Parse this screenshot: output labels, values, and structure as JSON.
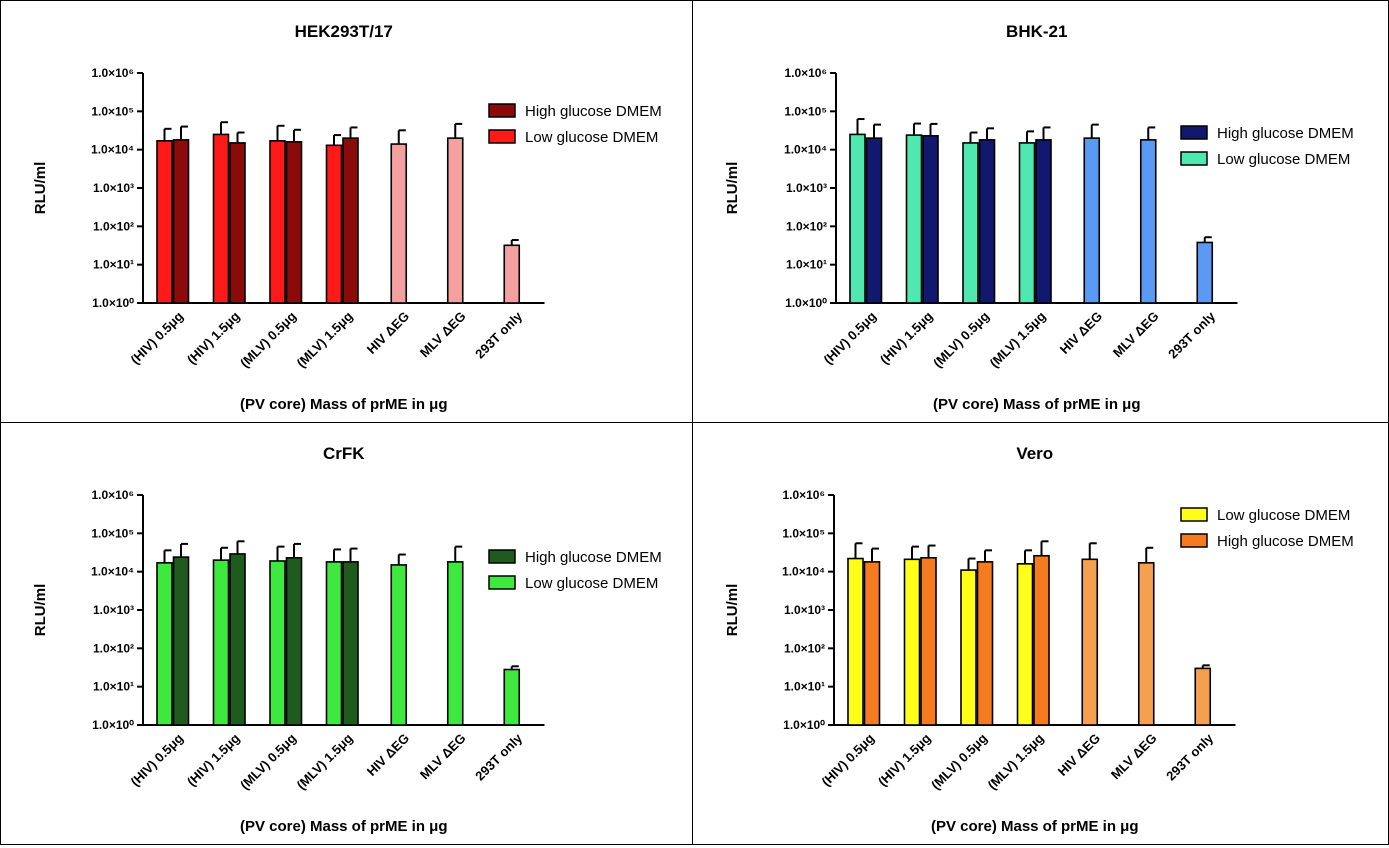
{
  "chart_data": [
    {
      "type": "bar",
      "title": "HEK293T/17",
      "xlabel": "(PV core) Mass of prME in μg",
      "ylabel": "RLU/ml",
      "yscale": "log",
      "ylim": [
        1,
        1000000
      ],
      "yticks": [
        "1.0×10⁰",
        "1.0×10¹",
        "1.0×10²",
        "1.0×10³",
        "1.0×10⁴",
        "1.0×10⁵",
        "1.0×10⁶"
      ],
      "categories": [
        "(HIV) 0.5μg",
        "(HIV) 1.5μg",
        "(MLV) 0.5μg",
        "(MLV) 1.5μg",
        "HIV ΔEG",
        "MLV ΔEG",
        "293T only"
      ],
      "legend_position": "right",
      "series": [
        {
          "name": "High glucose DMEM",
          "color": "#8b0a0a",
          "legend_order": 0
        },
        {
          "name": "Low glucose DMEM",
          "color": "#ff1a1a",
          "legend_order": 1
        }
      ],
      "bars": [
        {
          "category": 0,
          "series": "Low glucose DMEM",
          "value": 17000,
          "error": 35000
        },
        {
          "category": 0,
          "series": "High glucose DMEM",
          "value": 18000,
          "error": 40000
        },
        {
          "category": 1,
          "series": "Low glucose DMEM",
          "value": 25000,
          "error": 52000
        },
        {
          "category": 1,
          "series": "High glucose DMEM",
          "value": 15000,
          "error": 28000
        },
        {
          "category": 2,
          "series": "Low glucose DMEM",
          "value": 17000,
          "error": 42000
        },
        {
          "category": 2,
          "series": "High glucose DMEM",
          "value": 16000,
          "error": 33000
        },
        {
          "category": 3,
          "series": "Low glucose DMEM",
          "value": 13000,
          "error": 24000
        },
        {
          "category": 3,
          "series": "High glucose DMEM",
          "value": 20000,
          "error": 38000
        },
        {
          "category": 4,
          "series": "control",
          "value": 14000,
          "error": 32000,
          "color": "#f4a0a0"
        },
        {
          "category": 5,
          "series": "control",
          "value": 20000,
          "error": 47000,
          "color": "#f4a0a0"
        },
        {
          "category": 6,
          "series": "control",
          "value": 32,
          "error": 44,
          "color": "#f4a0a0"
        }
      ]
    },
    {
      "type": "bar",
      "title": "BHK-21",
      "xlabel": "(PV core) Mass of prME in μg",
      "ylabel": "RLU/ml",
      "yscale": "log",
      "ylim": [
        1,
        1000000
      ],
      "yticks": [
        "1.0×10⁰",
        "1.0×10¹",
        "1.0×10²",
        "1.0×10³",
        "1.0×10⁴",
        "1.0×10⁵",
        "1.0×10⁶"
      ],
      "categories": [
        "(HIV) 0.5μg",
        "(HIV) 1.5μg",
        "(MLV) 0.5μg",
        "(MLV) 1.5μg",
        "HIV ΔEG",
        "MLV ΔEG",
        "293T only"
      ],
      "legend_position": "right",
      "series": [
        {
          "name": "High glucose DMEM",
          "color": "#12186e",
          "legend_order": 0
        },
        {
          "name": "Low glucose DMEM",
          "color": "#4ee8b0",
          "legend_order": 1
        }
      ],
      "bars": [
        {
          "category": 0,
          "series": "Low glucose DMEM",
          "value": 25000,
          "error": 63000
        },
        {
          "category": 0,
          "series": "High glucose DMEM",
          "value": 20000,
          "error": 45000
        },
        {
          "category": 1,
          "series": "Low glucose DMEM",
          "value": 24000,
          "error": 48000
        },
        {
          "category": 1,
          "series": "High glucose DMEM",
          "value": 23000,
          "error": 47000
        },
        {
          "category": 2,
          "series": "Low glucose DMEM",
          "value": 15000,
          "error": 28000
        },
        {
          "category": 2,
          "series": "High glucose DMEM",
          "value": 18000,
          "error": 36000
        },
        {
          "category": 3,
          "series": "Low glucose DMEM",
          "value": 15000,
          "error": 30000
        },
        {
          "category": 3,
          "series": "High glucose DMEM",
          "value": 18000,
          "error": 38000
        },
        {
          "category": 4,
          "series": "control",
          "value": 20000,
          "error": 45000,
          "color": "#5a9af2"
        },
        {
          "category": 5,
          "series": "control",
          "value": 18000,
          "error": 38000,
          "color": "#5a9af2"
        },
        {
          "category": 6,
          "series": "control",
          "value": 38,
          "error": 52,
          "color": "#5a9af2"
        }
      ]
    },
    {
      "type": "bar",
      "title": "CrFK",
      "xlabel": "(PV core) Mass of prME in μg",
      "ylabel": "RLU/ml",
      "yscale": "log",
      "ylim": [
        1,
        1000000
      ],
      "yticks": [
        "1.0×10⁰",
        "1.0×10¹",
        "1.0×10²",
        "1.0×10³",
        "1.0×10⁴",
        "1.0×10⁵",
        "1.0×10⁶"
      ],
      "categories": [
        "(HIV) 0.5μg",
        "(HIV) 1.5μg",
        "(MLV) 0.5μg",
        "(MLV) 1.5μg",
        "HIV ΔEG",
        "MLV ΔEG",
        "293T only"
      ],
      "legend_position": "right",
      "series": [
        {
          "name": "High glucose DMEM",
          "color": "#1f5a1f",
          "legend_order": 0
        },
        {
          "name": "Low glucose DMEM",
          "color": "#3ee83e",
          "legend_order": 1
        }
      ],
      "bars": [
        {
          "category": 0,
          "series": "Low glucose DMEM",
          "value": 17000,
          "error": 36000
        },
        {
          "category": 0,
          "series": "High glucose DMEM",
          "value": 24000,
          "error": 53000
        },
        {
          "category": 1,
          "series": "Low glucose DMEM",
          "value": 20000,
          "error": 42000
        },
        {
          "category": 1,
          "series": "High glucose DMEM",
          "value": 29000,
          "error": 62000
        },
        {
          "category": 2,
          "series": "Low glucose DMEM",
          "value": 19000,
          "error": 45000
        },
        {
          "category": 2,
          "series": "High glucose DMEM",
          "value": 23000,
          "error": 53000
        },
        {
          "category": 3,
          "series": "Low glucose DMEM",
          "value": 18000,
          "error": 38000
        },
        {
          "category": 3,
          "series": "High glucose DMEM",
          "value": 18000,
          "error": 40000
        },
        {
          "category": 4,
          "series": "control",
          "value": 15000,
          "error": 28000,
          "color": "#3ee83e"
        },
        {
          "category": 5,
          "series": "control",
          "value": 18000,
          "error": 45000,
          "color": "#3ee83e"
        },
        {
          "category": 6,
          "series": "control",
          "value": 28,
          "error": 34,
          "color": "#3ee83e"
        }
      ]
    },
    {
      "type": "bar",
      "title": "Vero",
      "xlabel": "(PV core) Mass of prME in μg",
      "ylabel": "RLU/ml",
      "yscale": "log",
      "ylim": [
        1,
        1000000
      ],
      "yticks": [
        "1.0×10⁰",
        "1.0×10¹",
        "1.0×10²",
        "1.0×10³",
        "1.0×10⁴",
        "1.0×10⁵",
        "1.0×10⁶"
      ],
      "categories": [
        "(HIV) 0.5μg",
        "(HIV) 1.5μg",
        "(MLV) 0.5μg",
        "(MLV) 1.5μg",
        "HIV ΔEG",
        "MLV ΔEG",
        "293T only"
      ],
      "legend_position": "top-right",
      "series": [
        {
          "name": "Low glucose DMEM",
          "color": "#ffff1a",
          "legend_order": 0
        },
        {
          "name": "High glucose DMEM",
          "color": "#f57a20",
          "legend_order": 1
        }
      ],
      "bars": [
        {
          "category": 0,
          "series": "Low glucose DMEM",
          "value": 22000,
          "error": 55000
        },
        {
          "category": 0,
          "series": "High glucose DMEM",
          "value": 18000,
          "error": 40000
        },
        {
          "category": 1,
          "series": "Low glucose DMEM",
          "value": 21000,
          "error": 45000
        },
        {
          "category": 1,
          "series": "High glucose DMEM",
          "value": 23000,
          "error": 48000
        },
        {
          "category": 2,
          "series": "Low glucose DMEM",
          "value": 11000,
          "error": 22000
        },
        {
          "category": 2,
          "series": "High glucose DMEM",
          "value": 18000,
          "error": 36000
        },
        {
          "category": 3,
          "series": "Low glucose DMEM",
          "value": 16000,
          "error": 36000
        },
        {
          "category": 3,
          "series": "High glucose DMEM",
          "value": 26000,
          "error": 62000
        },
        {
          "category": 4,
          "series": "control",
          "value": 21000,
          "error": 55000,
          "color": "#f5a050"
        },
        {
          "category": 5,
          "series": "control",
          "value": 17000,
          "error": 42000,
          "color": "#f5a050"
        },
        {
          "category": 6,
          "series": "control",
          "value": 30,
          "error": 36,
          "color": "#f5a050"
        }
      ]
    }
  ]
}
